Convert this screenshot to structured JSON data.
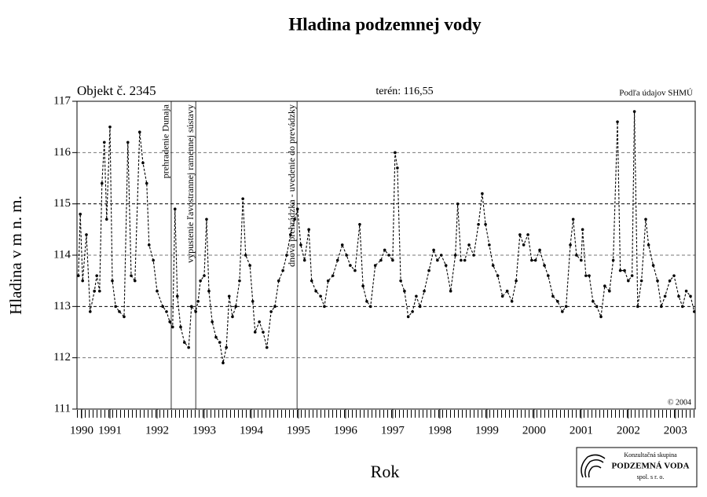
{
  "chart_data": {
    "type": "line",
    "title": "Hladina podzemnej vody",
    "object_label": "Objekt č. 2345",
    "terrain_label": "terén: 116,55",
    "source_label": "Podľa údajov SHMÚ",
    "copyright": "© 2004",
    "ylabel": "Hladina v m n. m.",
    "xlabel": "Rok",
    "logo": {
      "line1": "Konzultačná skupina",
      "line2": "PODZEMNÁ VODA",
      "line3": "spol. s r. o."
    },
    "xlim": [
      1990.8,
      2003.92
    ],
    "ylim": [
      111,
      117
    ],
    "yticks": [
      111,
      112,
      113,
      114,
      115,
      116,
      117
    ],
    "xticks": [
      {
        "value": 1990.9,
        "label": "1990"
      },
      {
        "value": 1991.5,
        "label": "1991"
      },
      {
        "value": 1992.5,
        "label": "1992"
      },
      {
        "value": 1993.5,
        "label": "1993"
      },
      {
        "value": 1994.5,
        "label": "1994"
      },
      {
        "value": 1995.5,
        "label": "1995"
      },
      {
        "value": 1996.5,
        "label": "1996"
      },
      {
        "value": 1997.5,
        "label": "1997"
      },
      {
        "value": 1998.5,
        "label": "1998"
      },
      {
        "value": 1999.5,
        "label": "1999"
      },
      {
        "value": 2000.5,
        "label": "2000"
      },
      {
        "value": 2001.5,
        "label": "2001"
      },
      {
        "value": 2002.5,
        "label": "2002"
      },
      {
        "value": 2003.5,
        "label": "2003"
      }
    ],
    "grid": true,
    "events": [
      {
        "x": 1992.8,
        "label": "prehradenie Dunaja"
      },
      {
        "x": 1993.32,
        "label": "vypustenie ľavostrannej ramennej sústavy"
      },
      {
        "x": 1995.47,
        "label": "dnová prehrádzka - uvedenie do prevádzky"
      }
    ],
    "x": [
      1990.83,
      1990.87,
      1990.92,
      1991.0,
      1991.08,
      1991.17,
      1991.22,
      1991.28,
      1991.33,
      1991.38,
      1991.43,
      1991.5,
      1991.55,
      1991.62,
      1991.7,
      1991.8,
      1991.88,
      1991.95,
      1992.03,
      1992.13,
      1992.2,
      1992.28,
      1992.33,
      1992.42,
      1992.5,
      1992.62,
      1992.7,
      1992.77,
      1992.83,
      1992.88,
      1992.93,
      1993.0,
      1993.08,
      1993.17,
      1993.23,
      1993.32,
      1993.37,
      1993.42,
      1993.5,
      1993.55,
      1993.6,
      1993.67,
      1993.75,
      1993.83,
      1993.9,
      1993.97,
      1994.03,
      1994.1,
      1994.17,
      1994.25,
      1994.32,
      1994.38,
      1994.47,
      1994.53,
      1994.58,
      1994.67,
      1994.75,
      1994.83,
      1994.92,
      1995.0,
      1995.08,
      1995.17,
      1995.25,
      1995.33,
      1995.42,
      1995.48,
      1995.55,
      1995.63,
      1995.72,
      1995.78,
      1995.87,
      1995.97,
      1996.05,
      1996.13,
      1996.23,
      1996.33,
      1996.43,
      1996.52,
      1996.6,
      1996.7,
      1996.8,
      1996.87,
      1996.95,
      1997.03,
      1997.13,
      1997.25,
      1997.33,
      1997.42,
      1997.5,
      1997.55,
      1997.6,
      1997.67,
      1997.75,
      1997.83,
      1997.92,
      1998.0,
      1998.08,
      1998.17,
      1998.27,
      1998.37,
      1998.45,
      1998.53,
      1998.63,
      1998.73,
      1998.83,
      1998.88,
      1998.95,
      1999.03,
      1999.12,
      1999.22,
      1999.32,
      1999.4,
      1999.47,
      1999.55,
      1999.63,
      1999.73,
      1999.83,
      1999.93,
      2000.03,
      2000.12,
      2000.2,
      2000.28,
      2000.37,
      2000.45,
      2000.53,
      2000.62,
      2000.72,
      2000.8,
      2000.9,
      2001.0,
      2001.1,
      2001.18,
      2001.27,
      2001.33,
      2001.4,
      2001.5,
      2001.53,
      2001.6,
      2001.67,
      2001.75,
      2001.83,
      2001.92,
      2002.0,
      2002.1,
      2002.18,
      2002.27,
      2002.33,
      2002.42,
      2002.5,
      2002.58,
      2002.63,
      2002.7,
      2002.78,
      2002.87,
      2002.93,
      2003.03,
      2003.12,
      2003.2,
      2003.28,
      2003.38,
      2003.47,
      2003.57,
      2003.65,
      2003.73,
      2003.82,
      2003.9
    ],
    "series": [
      {
        "color": "#000000",
        "values": [
          113.6,
          114.8,
          113.5,
          114.4,
          112.9,
          113.3,
          113.6,
          113.3,
          115.4,
          116.2,
          114.7,
          116.5,
          113.5,
          113.0,
          112.9,
          112.8,
          116.2,
          113.6,
          113.5,
          116.4,
          115.8,
          115.4,
          114.2,
          113.9,
          113.3,
          113.0,
          112.9,
          112.7,
          112.6,
          114.9,
          113.2,
          112.6,
          112.3,
          112.2,
          113.0,
          112.9,
          113.1,
          113.5,
          113.6,
          114.7,
          113.3,
          112.7,
          112.4,
          112.3,
          111.9,
          112.2,
          113.2,
          112.8,
          113.0,
          113.5,
          115.1,
          114.0,
          113.8,
          113.1,
          112.5,
          112.7,
          112.5,
          112.2,
          112.9,
          113.0,
          113.5,
          113.7,
          114.0,
          114.4,
          114.7,
          114.9,
          114.2,
          113.9,
          114.5,
          113.5,
          113.3,
          113.2,
          113.0,
          113.5,
          113.6,
          113.9,
          114.2,
          114.0,
          113.8,
          113.7,
          114.6,
          113.4,
          113.1,
          113.0,
          113.8,
          113.9,
          114.1,
          114.0,
          113.9,
          116.0,
          115.7,
          113.5,
          113.3,
          112.8,
          112.9,
          113.2,
          113.0,
          113.3,
          113.7,
          114.1,
          113.9,
          114.0,
          113.8,
          113.3,
          114.0,
          115.0,
          113.9,
          113.9,
          114.2,
          114.0,
          114.6,
          115.2,
          114.6,
          114.2,
          113.8,
          113.6,
          113.2,
          113.3,
          113.1,
          113.5,
          114.4,
          114.2,
          114.4,
          113.9,
          113.9,
          114.1,
          113.8,
          113.6,
          113.2,
          113.1,
          112.9,
          113.0,
          114.2,
          114.7,
          114.0,
          113.9,
          114.5,
          113.6,
          113.6,
          113.1,
          113.0,
          112.8,
          113.4,
          113.3,
          113.9,
          116.6,
          113.7,
          113.7,
          113.5,
          113.6,
          116.8,
          113.0,
          113.5,
          114.7,
          114.2,
          113.8,
          113.5,
          113.0,
          113.2,
          113.5,
          113.6,
          113.2,
          113.0,
          113.3,
          113.2,
          112.9
        ]
      }
    ]
  }
}
